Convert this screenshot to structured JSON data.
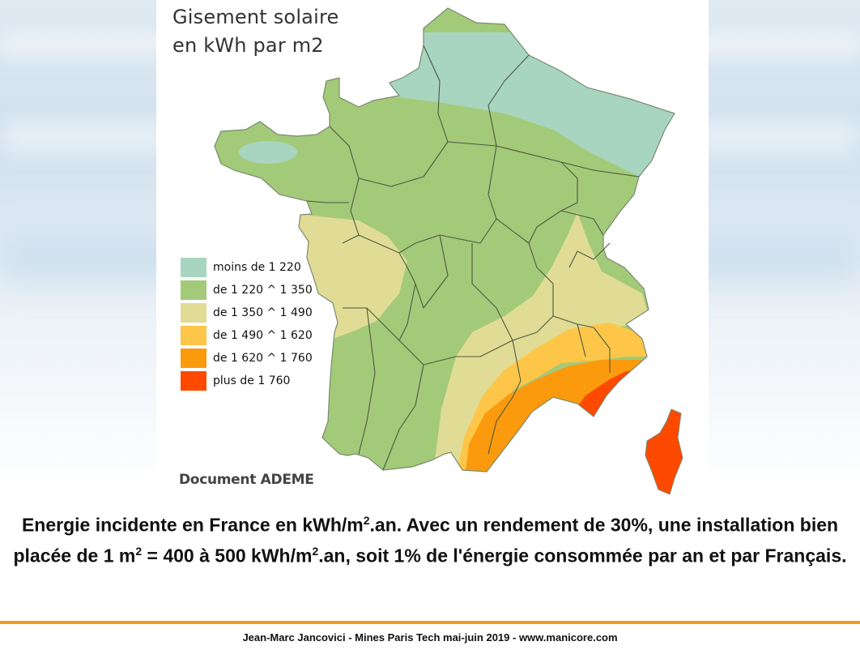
{
  "map": {
    "title_line1": "Gisement solaire",
    "title_line2": "en kWh par m2",
    "credit": "Document ADEME",
    "legend": [
      {
        "label": "moins de 1 220",
        "color": "#a8d5bf"
      },
      {
        "label": "de 1 220 ^ 1 350",
        "color": "#a3ca78"
      },
      {
        "label": "de 1 350 ^ 1 490",
        "color": "#e1dc95"
      },
      {
        "label": "de 1 490 ^ 1 620",
        "color": "#fdc649"
      },
      {
        "label": "de 1 620 ^ 1 760",
        "color": "#fb9a0d"
      },
      {
        "label": "plus de 1 760",
        "color": "#fe4a00"
      }
    ]
  },
  "caption": {
    "part1": "Energie incidente en France en kWh/m",
    "sup1": "2",
    "part2": ".an. Avec un rendement de 30%, une installation bien placée de 1 m",
    "sup2": "2",
    "part3": " = 400 à 500 kWh/m",
    "sup3": "2",
    "part4": ".an, soit 1% de l'énergie consommée par an et par Français."
  },
  "footer": {
    "text": "Jean-Marc Jancovici - Mines Paris Tech mai-juin 2019 - www.manicore.com",
    "accent_color": "#f39a1e"
  }
}
